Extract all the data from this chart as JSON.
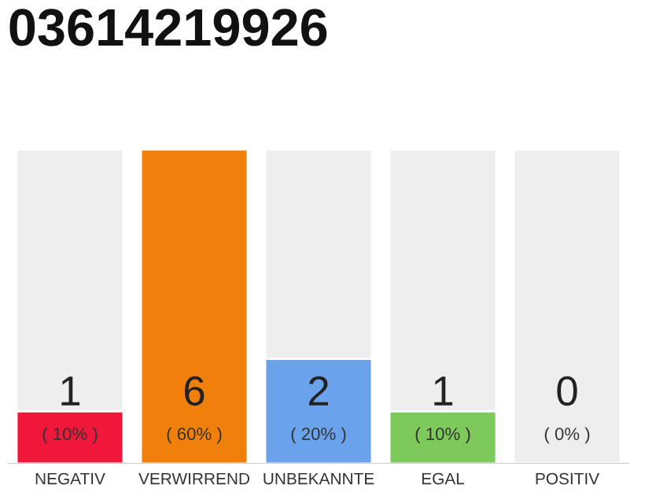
{
  "chart_data": {
    "type": "bar",
    "title": "03614219926",
    "categories": [
      "NEGATIV",
      "VERWIRREND",
      "UNBEKANNTE",
      "EGAL",
      "POSITIV"
    ],
    "values": [
      1,
      6,
      2,
      1,
      0
    ],
    "colors": [
      "#f0173a",
      "#f07f0c",
      "#6aa2ec",
      "#7dc95a",
      null
    ],
    "ylim": [
      0,
      6
    ],
    "data_labels": true,
    "grid": false,
    "legend": false,
    "tick_labels": "x",
    "annotations": [
      "( 10% )",
      "( 60% )",
      "( 20% )",
      "( 10% )",
      "( 0% )"
    ]
  }
}
